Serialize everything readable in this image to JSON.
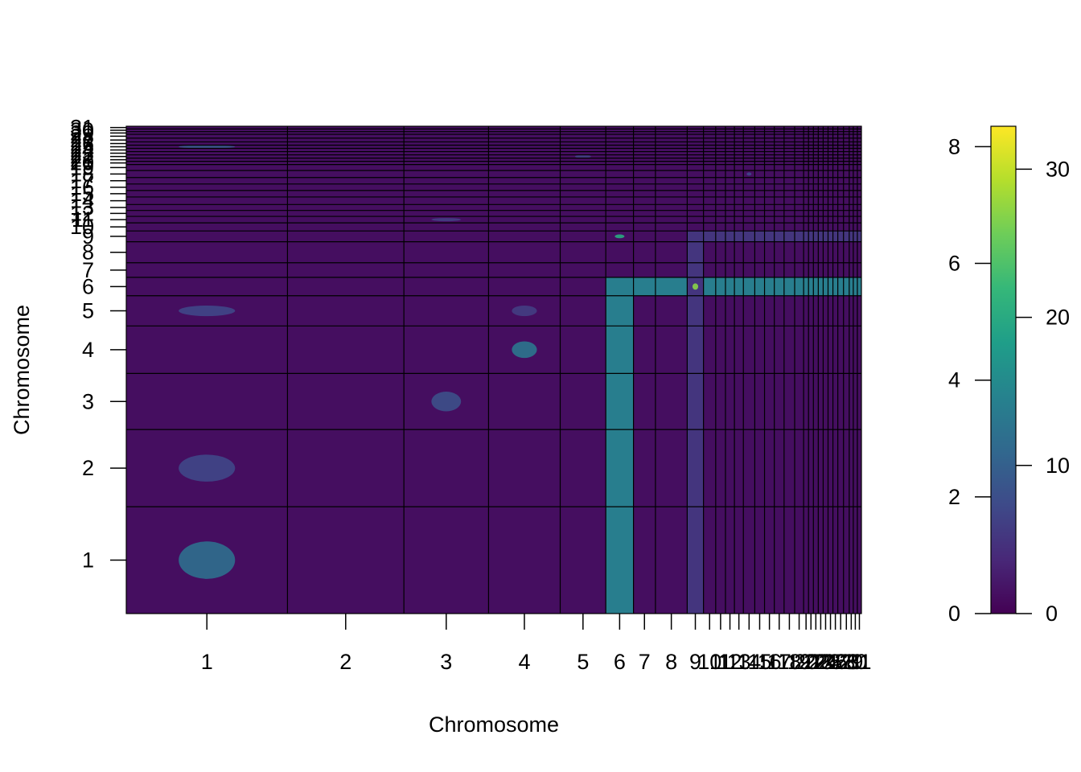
{
  "chart_data": {
    "type": "heatmap",
    "title": "",
    "xlabel": "Chromosome",
    "ylabel": "Chromosome",
    "chromosomes": [
      "1",
      "2",
      "3",
      "4",
      "5",
      "6",
      "7",
      "8",
      "9",
      "10",
      "11",
      "12",
      "13",
      "14",
      "15",
      "16",
      "17",
      "18",
      "19",
      "20",
      "21",
      "22",
      "23",
      "24",
      "25",
      "26",
      "27",
      "28",
      "29",
      "30",
      "31"
    ],
    "chrom_rel_lengths": [
      198,
      143,
      104,
      88,
      56,
      34,
      27,
      39,
      20,
      15,
      12,
      11,
      11,
      14,
      12,
      12,
      12,
      13,
      11,
      6,
      6,
      6,
      6,
      6,
      6,
      6,
      7,
      7,
      5,
      5,
      5
    ],
    "scale_left": {
      "ticks": [
        0,
        2,
        4,
        6,
        8
      ],
      "range": [
        0,
        8.35
      ]
    },
    "scale_right": {
      "ticks": [
        0,
        10,
        20,
        30
      ],
      "range": [
        0,
        32.9
      ]
    },
    "colormap": [
      "#440154",
      "#482878",
      "#3E4A89",
      "#31688E",
      "#26828E",
      "#1F9E89",
      "#35B779",
      "#6DCD59",
      "#B4DE2C",
      "#FDE725"
    ],
    "background_value": 1.2,
    "highlight_bands": [
      {
        "orientation": "vertical",
        "chrom": "6",
        "value": 14
      },
      {
        "orientation": "horizontal",
        "chrom": "6",
        "value": 14
      },
      {
        "orientation": "vertical",
        "chrom": "9",
        "value": 5
      },
      {
        "orientation": "horizontal",
        "chrom": "9",
        "value": 5
      }
    ],
    "hotspots": [
      {
        "x_chrom": "9",
        "y_chrom": "6",
        "value": 27
      },
      {
        "x_chrom": "6",
        "y_chrom": "9",
        "value": 20
      },
      {
        "x_chrom": "4",
        "y_chrom": "4",
        "value": 13
      },
      {
        "x_chrom": "1",
        "y_chrom": "1",
        "value": 12
      },
      {
        "x_chrom": "1",
        "y_chrom": "2",
        "value": 7
      },
      {
        "x_chrom": "3",
        "y_chrom": "3",
        "value": 8
      },
      {
        "x_chrom": "1",
        "y_chrom": "5",
        "value": 7
      },
      {
        "x_chrom": "4",
        "y_chrom": "5",
        "value": 6
      },
      {
        "x_chrom": "1",
        "y_chrom": "25",
        "value": 9
      },
      {
        "x_chrom": "14",
        "y_chrom": "18",
        "value": 7
      },
      {
        "x_chrom": "3",
        "y_chrom": "11",
        "value": 6
      },
      {
        "x_chrom": "5",
        "y_chrom": "22",
        "value": 6
      }
    ],
    "grid": true,
    "legend": "right"
  }
}
